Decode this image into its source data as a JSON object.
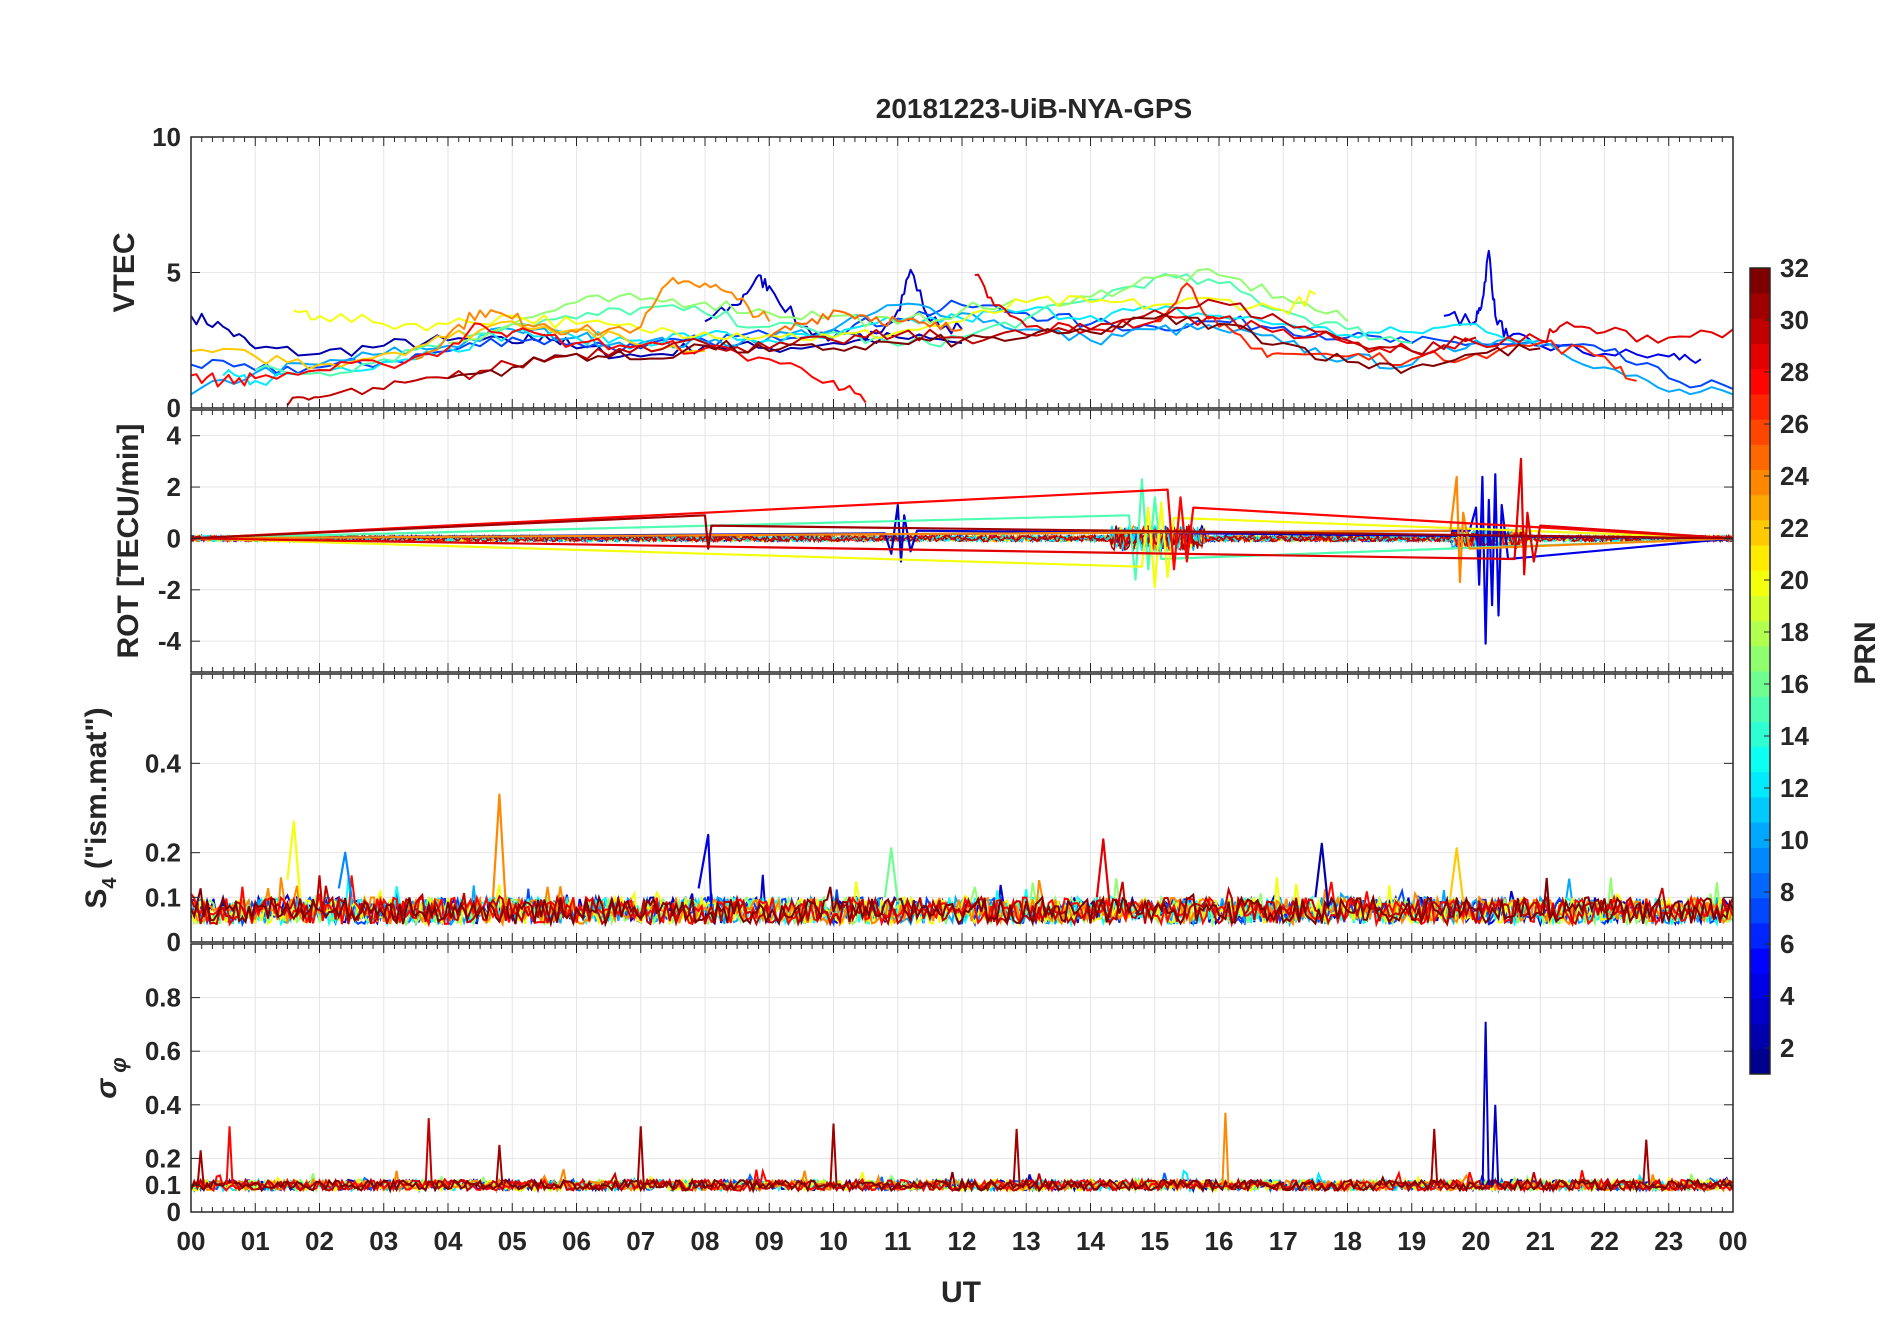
{
  "title": "20181223-UiB-NYA-GPS",
  "xlabel": "UT",
  "colorbar": {
    "label": "PRN",
    "ticks": [
      "2",
      "4",
      "6",
      "8",
      "10",
      "12",
      "14",
      "16",
      "18",
      "20",
      "22",
      "24",
      "26",
      "28",
      "30",
      "32"
    ],
    "min": 1,
    "max": 32,
    "colors": [
      "#00008f",
      "#0000ff",
      "#0080ff",
      "#00ffff",
      "#80ff80",
      "#ffff00",
      "#ff8000",
      "#ff0000",
      "#800000"
    ]
  },
  "chart_data": [
    {
      "type": "line",
      "ylabel": "VTEC",
      "ylim": [
        0,
        10
      ],
      "yticks": [
        {
          "v": 0,
          "t": "0"
        },
        {
          "v": 5,
          "t": "5"
        },
        {
          "v": 10,
          "t": "10"
        }
      ],
      "xlim": [
        0,
        24
      ],
      "xticks": [
        "00",
        "01",
        "02",
        "03",
        "04",
        "05",
        "06",
        "07",
        "08",
        "09",
        "10",
        "11",
        "12",
        "13",
        "14",
        "15",
        "16",
        "17",
        "18",
        "19",
        "20",
        "21",
        "22",
        "23",
        "00"
      ],
      "grid": true,
      "series": [
        {
          "prn": 2,
          "x": [
            0,
            0.5,
            1,
            2,
            3,
            4,
            5,
            5.5,
            6,
            7,
            8,
            9,
            10,
            11,
            12
          ],
          "y": [
            3.4,
            3.0,
            2.2,
            2.0,
            2.3,
            2.5,
            2.4,
            2.7,
            2.2,
            1.9,
            2.3,
            2.2,
            2.4,
            2.6,
            2.4
          ]
        },
        {
          "prn": 3,
          "x": [
            8,
            8.5,
            8.8,
            9,
            9.5,
            10,
            10.5,
            11,
            11.2,
            11.5,
            12
          ],
          "y": [
            3.2,
            3.8,
            4.8,
            4.5,
            3.0,
            2.6,
            2.5,
            3.6,
            5.1,
            3.2,
            2.9
          ]
        },
        {
          "prn": 4,
          "x": [
            19.5,
            20,
            20.1,
            20.2,
            20.3,
            20.5,
            21,
            22,
            23,
            23.5
          ],
          "y": [
            3.4,
            3.2,
            4.0,
            5.8,
            3.4,
            2.6,
            2.3,
            2.0,
            1.9,
            1.8
          ]
        },
        {
          "prn": 7,
          "x": [
            0,
            1,
            2,
            3,
            4,
            5,
            6,
            7,
            8,
            9,
            10,
            11,
            12,
            13,
            14,
            15,
            16,
            17,
            18,
            19,
            20,
            21,
            22,
            23,
            24
          ],
          "y": [
            1.6,
            1.4,
            1.5,
            1.7,
            2.1,
            2.6,
            2.4,
            2.2,
            2.5,
            2.7,
            2.9,
            3.3,
            3.8,
            3.5,
            3.1,
            3.0,
            3.2,
            3.0,
            2.6,
            2.4,
            2.4,
            2.3,
            2.1,
            1.1,
            0.7
          ]
        },
        {
          "prn": 10,
          "x": [
            0,
            1,
            2,
            3,
            4,
            5,
            6,
            7,
            8,
            9,
            10,
            11,
            12,
            13,
            14,
            15,
            16,
            17,
            18,
            19,
            20,
            21,
            22,
            23,
            24
          ],
          "y": [
            0.5,
            1.3,
            1.6,
            2.0,
            2.3,
            2.9,
            2.6,
            2.4,
            2.4,
            2.6,
            2.9,
            3.8,
            3.5,
            2.9,
            2.5,
            2.9,
            2.9,
            2.4,
            1.8,
            1.6,
            2.5,
            2.5,
            1.5,
            0.6,
            0.5
          ]
        },
        {
          "prn": 12,
          "x": [
            0.5,
            1,
            2,
            3,
            4,
            5,
            6,
            7,
            8,
            9,
            10,
            11,
            12,
            13,
            14,
            15,
            16,
            17,
            18,
            19,
            20,
            21
          ],
          "y": [
            1.2,
            1.0,
            1.4,
            1.7,
            2.2,
            2.8,
            2.6,
            2.5,
            2.7,
            2.5,
            2.6,
            3.2,
            3.3,
            3.6,
            3.4,
            3.6,
            3.4,
            3.1,
            2.7,
            2.8,
            3.1,
            2.3
          ]
        },
        {
          "prn": 15,
          "x": [
            1,
            2,
            3,
            4,
            5,
            6,
            7,
            8,
            9,
            10,
            11,
            12,
            13,
            14,
            15,
            16,
            17,
            18,
            19
          ],
          "y": [
            1.4,
            1.3,
            1.8,
            2.6,
            3.1,
            3.3,
            3.7,
            3.5,
            3.0,
            2.8,
            2.3,
            2.6,
            3.3,
            4.0,
            4.8,
            4.6,
            3.6,
            2.9,
            2.4
          ]
        },
        {
          "prn": 17,
          "x": [
            4,
            5,
            6,
            7,
            8,
            9,
            10,
            11,
            12,
            13,
            14,
            15,
            16,
            17,
            18
          ],
          "y": [
            2.4,
            3.1,
            3.9,
            4.0,
            3.9,
            3.5,
            3.4,
            3.1,
            3.6,
            3.9,
            4.1,
            4.8,
            4.9,
            4.1,
            3.2
          ]
        },
        {
          "prn": 20,
          "x": [
            1.6,
            2,
            3,
            4,
            5,
            6,
            7,
            8,
            9,
            10,
            11,
            12,
            13,
            14,
            15,
            16,
            17,
            17.5
          ],
          "y": [
            3.6,
            3.4,
            3.1,
            3.1,
            3.4,
            3.1,
            2.9,
            2.8,
            2.7,
            2.6,
            2.8,
            3.2,
            3.9,
            3.9,
            3.8,
            4.0,
            3.6,
            4.2
          ]
        },
        {
          "prn": 22,
          "x": [
            0,
            1,
            2,
            3,
            4,
            5,
            6,
            7,
            8
          ],
          "y": [
            2.1,
            1.9,
            1.6,
            2.0,
            2.6,
            3.2,
            2.9,
            2.3,
            2.1
          ]
        },
        {
          "prn": 24,
          "x": [
            3.5,
            4,
            4.5,
            5,
            5.5,
            6,
            7,
            7.5,
            8,
            8.5,
            9
          ],
          "y": [
            1.8,
            2.7,
            3.6,
            3.3,
            3.1,
            2.8,
            3.0,
            4.8,
            4.6,
            4.0,
            3.2
          ]
        },
        {
          "prn": 25,
          "x": [
            9,
            9.5,
            10,
            10.5,
            11,
            11.5,
            12
          ],
          "y": [
            2.6,
            3.1,
            3.6,
            3.4,
            3.2,
            3.0,
            2.9
          ]
        },
        {
          "prn": 27,
          "x": [
            15,
            15.5,
            16,
            16.5,
            17,
            18,
            19,
            20,
            21,
            22,
            22.5
          ],
          "y": [
            3.2,
            4.6,
            3.0,
            2.2,
            2.0,
            1.9,
            1.8,
            2.0,
            2.4,
            1.9,
            1.0
          ]
        },
        {
          "prn": 28,
          "x": [
            0,
            0.5,
            1,
            2,
            3,
            4,
            4.5,
            5,
            6,
            7,
            8,
            9,
            10,
            10.5
          ],
          "y": [
            1.2,
            1.0,
            1.1,
            1.4,
            1.6,
            2.2,
            3.1,
            2.8,
            2.4,
            2.3,
            2.2,
            1.8,
            1.0,
            0.2
          ]
        },
        {
          "prn": 29,
          "x": [
            12.2,
            12.5,
            13,
            14,
            15,
            16,
            17,
            18,
            19,
            20,
            21,
            21.3,
            22,
            23,
            24
          ],
          "y": [
            4.9,
            3.8,
            3.0,
            2.9,
            3.2,
            3.3,
            2.9,
            2.4,
            2.1,
            2.4,
            2.5,
            3.0,
            2.8,
            2.6,
            2.9
          ]
        },
        {
          "prn": 30,
          "x": [
            1.5,
            2,
            3,
            4,
            5,
            6,
            7,
            8,
            9,
            10,
            11,
            12,
            13,
            14,
            15,
            16,
            17,
            18,
            19,
            20
          ],
          "y": [
            0.1,
            0.4,
            0.7,
            1.1,
            1.6,
            2.0,
            2.3,
            2.4,
            2.2,
            2.5,
            2.7,
            2.6,
            2.7,
            2.9,
            3.6,
            3.9,
            3.2,
            2.5,
            2.1,
            2.6
          ]
        },
        {
          "prn": 32,
          "x": [
            4,
            5,
            6,
            7,
            8,
            9,
            10,
            11,
            12,
            13,
            14,
            15,
            16,
            17,
            18,
            19,
            20,
            21
          ],
          "y": [
            1.1,
            1.5,
            2.0,
            1.8,
            2.3,
            2.1,
            2.2,
            2.4,
            2.5,
            2.6,
            2.8,
            3.3,
            3.1,
            2.4,
            1.7,
            1.5,
            2.0,
            2.2
          ]
        }
      ]
    },
    {
      "type": "line",
      "ylabel": "ROT [TECU/min]",
      "ylim": [
        -5.2,
        5
      ],
      "yticks": [
        {
          "v": -4,
          "t": "-4"
        },
        {
          "v": -2,
          "t": "-2"
        },
        {
          "v": 0,
          "t": "0"
        },
        {
          "v": 2,
          "t": "2"
        },
        {
          "v": 4,
          "t": "4"
        }
      ],
      "grid": true,
      "series": [
        {
          "prn": 3,
          "x": [
            0,
            10.8,
            10.9,
            11,
            11.05,
            11.1,
            11.2,
            11.3,
            24
          ],
          "y": [
            0,
            0.2,
            -0.6,
            1.3,
            -0.9,
            0.9,
            -0.5,
            0.3,
            0
          ]
        },
        {
          "prn": 4,
          "x": [
            0,
            19.9,
            20,
            20.05,
            20.1,
            20.15,
            20.2,
            20.25,
            20.3,
            20.35,
            20.4,
            20.5,
            24
          ],
          "y": [
            0,
            0.3,
            1.2,
            -1.8,
            2.4,
            -4.1,
            1.5,
            -2.6,
            2.5,
            -3.0,
            1.3,
            -0.8,
            0
          ]
        },
        {
          "prn": 15,
          "x": [
            0,
            14.6,
            14.7,
            14.8,
            14.9,
            15.0,
            15.1,
            24
          ],
          "y": [
            0,
            0.9,
            -1.6,
            2.3,
            -1.2,
            1.6,
            -0.8,
            0
          ]
        },
        {
          "prn": 20,
          "x": [
            0,
            14.8,
            14.9,
            15,
            15.1,
            15.2,
            15.3,
            24
          ],
          "y": [
            0,
            -1.1,
            1.2,
            -1.9,
            1.4,
            -1.5,
            0.8,
            0
          ]
        },
        {
          "prn": 24,
          "x": [
            0,
            19.6,
            19.7,
            19.75,
            19.8,
            19.9,
            24
          ],
          "y": [
            0,
            0.3,
            2.4,
            -1.7,
            1.0,
            -0.4,
            0
          ]
        },
        {
          "prn": 28,
          "x": [
            0,
            15.2,
            15.3,
            15.4,
            15.5,
            15.6,
            24
          ],
          "y": [
            0,
            1.9,
            -1.2,
            1.6,
            -0.9,
            1.2,
            0
          ]
        },
        {
          "prn": 29,
          "x": [
            0,
            20.6,
            20.7,
            20.75,
            20.8,
            20.9,
            21.0,
            24
          ],
          "y": [
            0,
            -0.8,
            3.1,
            -1.4,
            1.0,
            -0.9,
            0.5,
            0
          ]
        },
        {
          "prn": 31,
          "x": [
            0,
            8.0,
            8.05,
            8.1,
            24
          ],
          "y": [
            0,
            0.9,
            -0.4,
            0.5,
            0
          ]
        }
      ]
    },
    {
      "type": "line",
      "ylabel": "S4 (\"ism.mat\")",
      "ylabel_parts": [
        "S",
        "4",
        " (\"ism.mat\")"
      ],
      "ylim": [
        0,
        0.6
      ],
      "yticks": [
        {
          "v": 0,
          "t": "0"
        },
        {
          "v": 0.1,
          "t": "0.1"
        },
        {
          "v": 0.2,
          "t": "0.2"
        },
        {
          "v": 0.4,
          "t": "0.4"
        }
      ],
      "grid": true,
      "series": [
        {
          "prn": 4,
          "x": [
            7.9,
            8.0,
            8.05,
            8.1
          ],
          "y": [
            0.12,
            0.2,
            0.24,
            0.08
          ]
        },
        {
          "prn": 9,
          "x": [
            2.3,
            2.4,
            2.5
          ],
          "y": [
            0.12,
            0.2,
            0.1
          ]
        },
        {
          "prn": 16,
          "x": [
            10.8,
            10.9,
            11.0
          ],
          "y": [
            0.1,
            0.21,
            0.09
          ]
        },
        {
          "prn": 20,
          "x": [
            1.5,
            1.6,
            1.7
          ],
          "y": [
            0.14,
            0.27,
            0.1
          ]
        },
        {
          "prn": 24,
          "x": [
            4.7,
            4.8,
            4.9
          ],
          "y": [
            0.1,
            0.33,
            0.08
          ]
        },
        {
          "prn": 29,
          "x": [
            14.1,
            14.2,
            14.3
          ],
          "y": [
            0.1,
            0.23,
            0.08
          ]
        },
        {
          "prn": 2,
          "x": [
            17.5,
            17.6,
            17.7
          ],
          "y": [
            0.1,
            0.22,
            0.08
          ]
        },
        {
          "prn": 22,
          "x": [
            19.6,
            19.7,
            19.8
          ],
          "y": [
            0.1,
            0.21,
            0.09
          ]
        }
      ]
    },
    {
      "type": "line",
      "ylabel": "σ φ",
      "ylabel_parts": [
        "σ",
        "φ"
      ],
      "ylim": [
        0,
        1
      ],
      "yticks": [
        {
          "v": 0,
          "t": "0"
        },
        {
          "v": 0.1,
          "t": "0.1"
        },
        {
          "v": 0.2,
          "t": "0.2"
        },
        {
          "v": 0.4,
          "t": "0.4"
        },
        {
          "v": 0.6,
          "t": "0.6"
        },
        {
          "v": 0.8,
          "t": "0.8"
        }
      ],
      "grid": true,
      "spikes": [
        {
          "prn": 31,
          "x": 0.15,
          "y": 0.23
        },
        {
          "prn": 28,
          "x": 0.6,
          "y": 0.32
        },
        {
          "prn": 30,
          "x": 3.7,
          "y": 0.35
        },
        {
          "prn": 31,
          "x": 4.8,
          "y": 0.25
        },
        {
          "prn": 31,
          "x": 7.0,
          "y": 0.32
        },
        {
          "prn": 31,
          "x": 10.0,
          "y": 0.33
        },
        {
          "prn": 31,
          "x": 12.85,
          "y": 0.31
        },
        {
          "prn": 24,
          "x": 16.1,
          "y": 0.37
        },
        {
          "prn": 31,
          "x": 19.35,
          "y": 0.31
        },
        {
          "prn": 3,
          "x": 20.15,
          "y": 0.71
        },
        {
          "prn": 3,
          "x": 20.3,
          "y": 0.4
        },
        {
          "prn": 31,
          "x": 22.65,
          "y": 0.27
        }
      ]
    }
  ]
}
